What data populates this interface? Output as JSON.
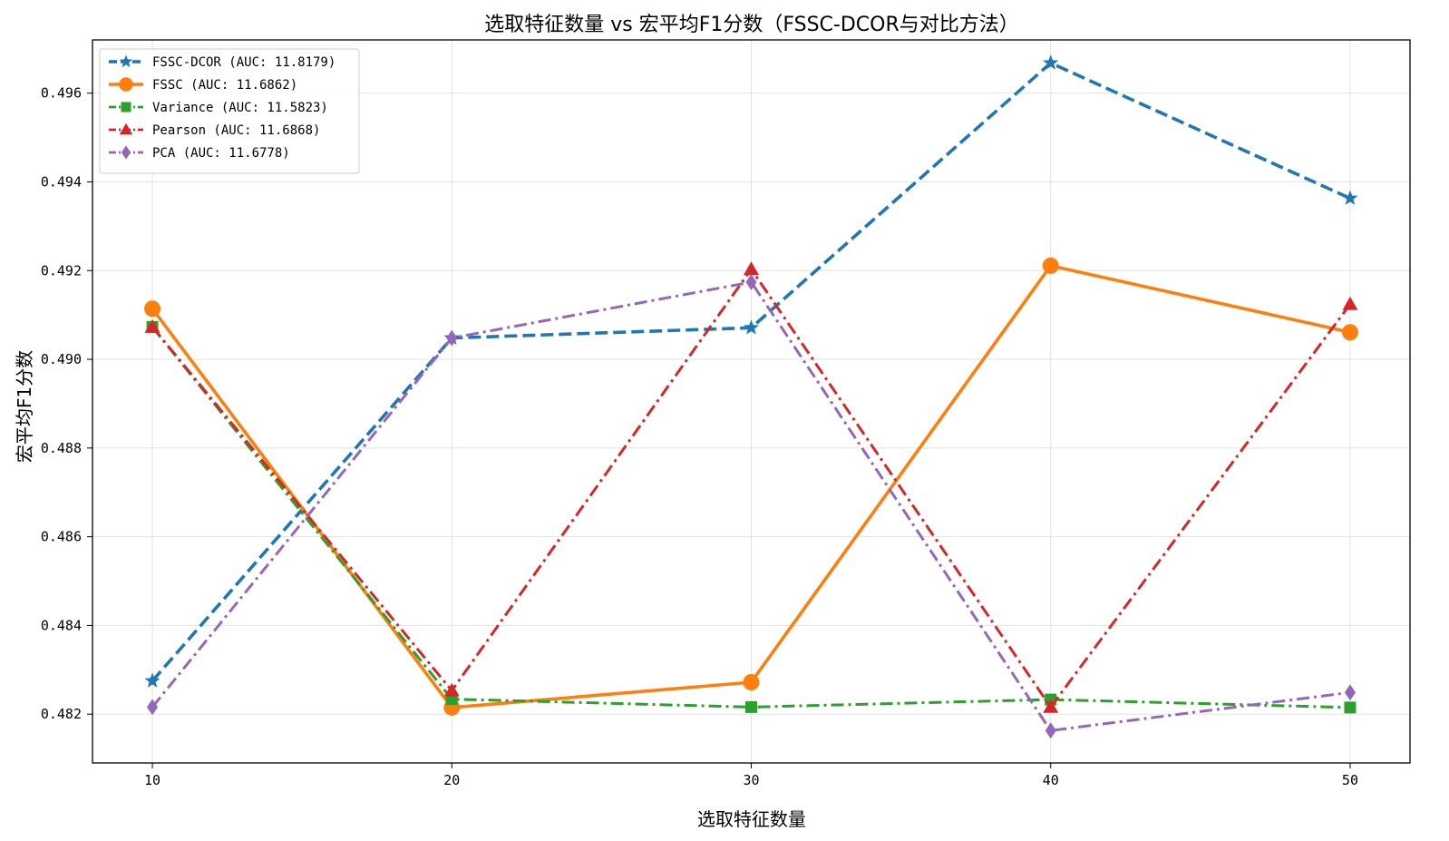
{
  "chart_data": {
    "type": "line",
    "title": "选取特征数量 vs 宏平均F1分数（FSSC-DCOR与对比方法）",
    "xlabel": "选取特征数量",
    "ylabel": "宏平均F1分数",
    "x": [
      10,
      20,
      30,
      40,
      50
    ],
    "xlim": [
      8,
      52
    ],
    "ylim": [
      0.4809,
      0.4972
    ],
    "x_ticks": [
      10,
      20,
      30,
      40,
      50
    ],
    "y_ticks": [
      0.482,
      0.484,
      0.486,
      0.488,
      0.49,
      0.492,
      0.494,
      0.496
    ],
    "y_tick_labels": [
      "0.482",
      "0.484",
      "0.486",
      "0.488",
      "0.490",
      "0.492",
      "0.494",
      "0.496"
    ],
    "grid": true,
    "legend_position": "top-left",
    "series": [
      {
        "name": "FSSC-DCOR (AUC: 11.8179)",
        "values": [
          0.48275,
          0.49048,
          0.49071,
          0.49668,
          0.49363
        ],
        "color": "#1f77b4",
        "linestyle": "dashed",
        "marker": "star",
        "linewidth": "thick"
      },
      {
        "name": "FSSC (AUC: 11.6862)",
        "values": [
          0.49114,
          0.48215,
          0.48272,
          0.49211,
          0.49061
        ],
        "color": "#ff7f0e",
        "linestyle": "solid",
        "marker": "circle",
        "linewidth": "thick"
      },
      {
        "name": "Variance (AUC: 11.5823)",
        "values": [
          0.49073,
          0.48234,
          0.48216,
          0.48233,
          0.48215
        ],
        "color": "#2ca02c",
        "linestyle": "dashdot",
        "marker": "square",
        "linewidth": "normal"
      },
      {
        "name": "Pearson (AUC: 11.6868)",
        "values": [
          0.49073,
          0.48253,
          0.49203,
          0.48216,
          0.49124
        ],
        "color": "#d62728",
        "linestyle": "dashdot",
        "marker": "triangle",
        "linewidth": "normal"
      },
      {
        "name": "PCA (AUC: 11.6778)",
        "values": [
          0.48216,
          0.49048,
          0.49174,
          0.48163,
          0.48249
        ],
        "color": "#9467bd",
        "linestyle": "dashdot",
        "marker": "diamond",
        "linewidth": "normal"
      }
    ]
  }
}
